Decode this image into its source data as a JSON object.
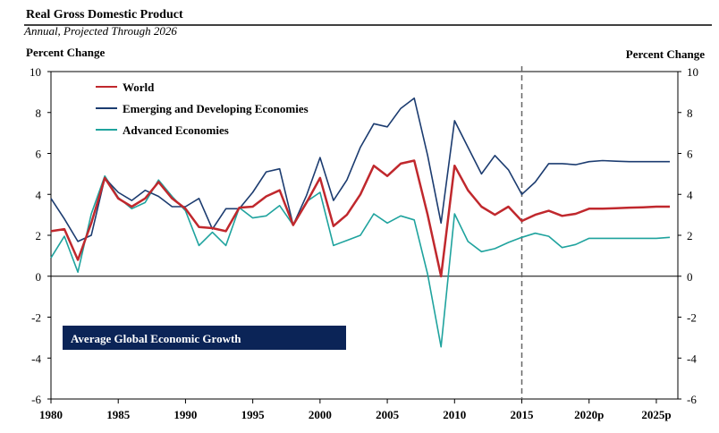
{
  "header": {
    "title": "Real Gross Domestic Product",
    "subtitle": "Annual, Projected Through 2026"
  },
  "badge": {
    "label": "Average Global Economic Growth",
    "color": "#0b2457"
  },
  "chart_data": {
    "type": "line",
    "ylabel_left": "Percent Change",
    "ylabel_right": "Percent Change",
    "ylim": [
      -6,
      10
    ],
    "y_ticks": [
      -6,
      -4,
      -2,
      0,
      2,
      4,
      6,
      8,
      10
    ],
    "xlim": [
      1980,
      2026
    ],
    "x_ticks": [
      {
        "value": 1980,
        "label": "1980"
      },
      {
        "value": 1985,
        "label": "1985"
      },
      {
        "value": 1990,
        "label": "1990"
      },
      {
        "value": 1995,
        "label": "1995"
      },
      {
        "value": 2000,
        "label": "2000"
      },
      {
        "value": 2005,
        "label": "2005"
      },
      {
        "value": 2010,
        "label": "2010"
      },
      {
        "value": 2015,
        "label": "2015"
      },
      {
        "value": 2020,
        "label": "2020p"
      },
      {
        "value": 2025,
        "label": "2025p"
      }
    ],
    "projection_start": 2015,
    "grid": false,
    "legend_position": "top-left",
    "x": [
      1980,
      1981,
      1982,
      1983,
      1984,
      1985,
      1986,
      1987,
      1988,
      1989,
      1990,
      1991,
      1992,
      1993,
      1994,
      1995,
      1996,
      1997,
      1998,
      1999,
      2000,
      2001,
      2002,
      2003,
      2004,
      2005,
      2006,
      2007,
      2008,
      2009,
      2010,
      2011,
      2012,
      2013,
      2014,
      2015,
      2016,
      2017,
      2018,
      2019,
      2020,
      2021,
      2022,
      2023,
      2024,
      2025,
      2026
    ],
    "series": [
      {
        "name": "World",
        "color": "#c0282d",
        "values": [
          2.2,
          2.3,
          0.8,
          2.6,
          4.8,
          3.8,
          3.4,
          3.8,
          4.6,
          3.8,
          3.3,
          2.4,
          2.35,
          2.2,
          3.35,
          3.4,
          3.9,
          4.2,
          2.5,
          3.6,
          4.8,
          2.45,
          3.0,
          4.0,
          5.4,
          4.9,
          5.5,
          5.65,
          3.0,
          0.0,
          5.4,
          4.2,
          3.4,
          3.0,
          3.4,
          2.7,
          3.0,
          3.2,
          2.95,
          3.05,
          3.3,
          3.3,
          3.32,
          3.35,
          3.37,
          3.4,
          3.4
        ]
      },
      {
        "name": "Emerging and Developing Economies",
        "color": "#1c3c70",
        "values": [
          3.8,
          2.8,
          1.7,
          2.0,
          4.8,
          4.1,
          3.7,
          4.2,
          3.9,
          3.4,
          3.4,
          3.8,
          2.3,
          3.3,
          3.3,
          4.1,
          5.1,
          5.25,
          2.5,
          3.95,
          5.8,
          3.7,
          4.7,
          6.3,
          7.45,
          7.3,
          8.2,
          8.7,
          5.9,
          2.6,
          7.6,
          6.3,
          5.0,
          5.9,
          5.2,
          4.0,
          4.6,
          5.5,
          5.5,
          5.45,
          5.6,
          5.65,
          5.62,
          5.6,
          5.6,
          5.6,
          5.6
        ]
      },
      {
        "name": "Advanced Economies",
        "color": "#1fa39e",
        "values": [
          0.9,
          1.95,
          0.2,
          3.05,
          4.9,
          3.85,
          3.3,
          3.6,
          4.7,
          3.9,
          3.2,
          1.5,
          2.15,
          1.5,
          3.35,
          2.85,
          2.95,
          3.45,
          2.5,
          3.65,
          4.1,
          1.5,
          1.75,
          2.0,
          3.05,
          2.6,
          2.95,
          2.75,
          0.1,
          -3.45,
          3.05,
          1.7,
          1.2,
          1.35,
          1.65,
          1.9,
          2.1,
          1.95,
          1.4,
          1.55,
          1.85,
          1.85,
          1.85,
          1.85,
          1.85,
          1.85,
          1.9
        ]
      }
    ]
  }
}
